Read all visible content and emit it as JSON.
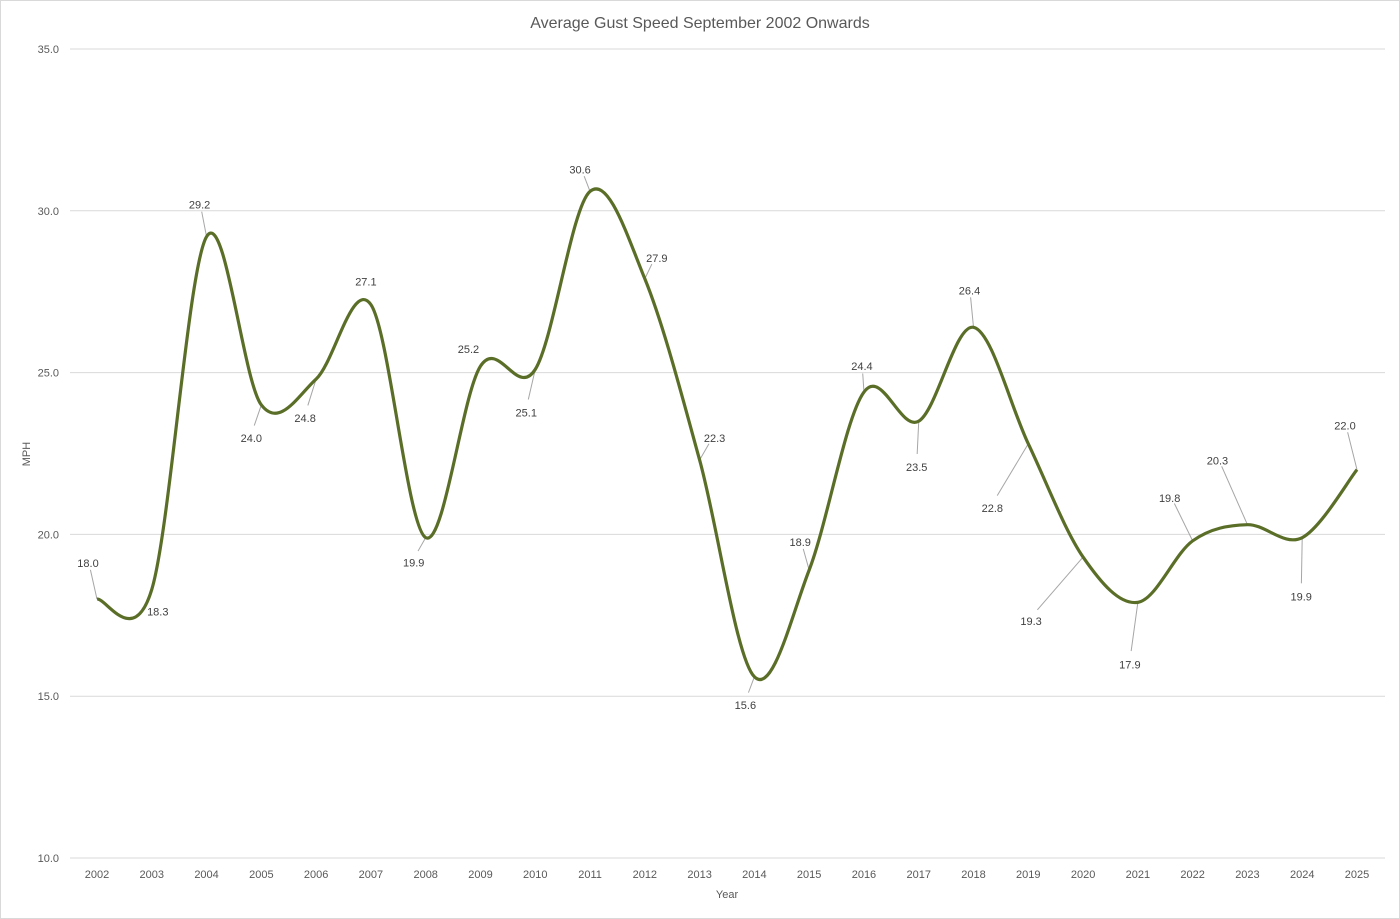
{
  "chart_data": {
    "type": "line",
    "title": "Average Gust Speed September 2002 Onwards",
    "xlabel": "Year",
    "ylabel": "MPH",
    "ylim": [
      10,
      35
    ],
    "yticks": [
      "10.0",
      "15.0",
      "20.0",
      "25.0",
      "30.0",
      "35.0"
    ],
    "grid": true,
    "smoothed": true,
    "line_color": "#5a6e28",
    "categories": [
      "2002",
      "2003",
      "2004",
      "2005",
      "2006",
      "2007",
      "2008",
      "2009",
      "2010",
      "2011",
      "2012",
      "2013",
      "2014",
      "2015",
      "2016",
      "2017",
      "2018",
      "2019",
      "2020",
      "2021",
      "2022",
      "2023",
      "2024",
      "2025"
    ],
    "series": [
      {
        "name": "MPH",
        "values": [
          18.0,
          18.3,
          29.2,
          24.0,
          24.8,
          27.1,
          19.9,
          25.2,
          25.1,
          30.6,
          27.9,
          22.3,
          15.6,
          18.9,
          24.4,
          23.5,
          26.4,
          22.8,
          19.3,
          17.9,
          19.8,
          20.3,
          19.9,
          22.0
        ]
      }
    ],
    "data_labels": [
      "18.0",
      "18.3",
      "29.2",
      "24.0",
      "24.8",
      "27.1",
      "19.9",
      "25.2",
      "25.1",
      "30.6",
      "27.9",
      "22.3",
      "15.6",
      "18.9",
      "24.4",
      "23.5",
      "26.4",
      "22.8",
      "19.3",
      "17.9",
      "19.8",
      "20.3",
      "19.9",
      "22.0"
    ]
  }
}
